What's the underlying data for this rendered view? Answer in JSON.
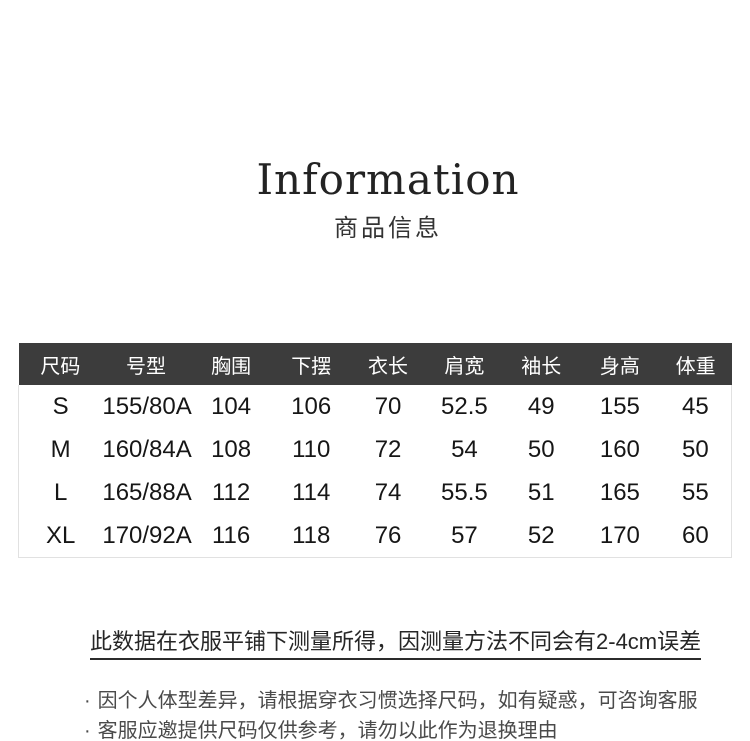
{
  "header": {
    "title": "Information",
    "subtitle": "商品信息"
  },
  "size_table": {
    "columns": [
      "尺码",
      "号型",
      "胸围",
      "下摆",
      "衣长",
      "肩宽",
      "袖长",
      "身高",
      "体重"
    ],
    "rows": [
      [
        "S",
        "155/80A",
        "104",
        "106",
        "70",
        "52.5",
        "49",
        "155",
        "45"
      ],
      [
        "M",
        "160/84A",
        "108",
        "110",
        "72",
        "54",
        "50",
        "160",
        "50"
      ],
      [
        "L",
        "165/88A",
        "112",
        "114",
        "74",
        "55.5",
        "51",
        "165",
        "55"
      ],
      [
        "XL",
        "170/92A",
        "116",
        "118",
        "76",
        "57",
        "52",
        "170",
        "60"
      ]
    ]
  },
  "notes": {
    "measurement_note": "此数据在衣服平铺下测量所得，因测量方法不同会有2-4cm误差",
    "bullet_char": "·",
    "bullets": [
      "因个人体型差异，请根据穿衣习惯选择尺码，如有疑惑，可咨询客服",
      "客服应邀提供尺码仅供参考，请勿以此作为退换理由"
    ]
  },
  "colors": {
    "title_text": "#232323",
    "table_header_bg": "#3c3c3c",
    "table_header_text": "#ffffff",
    "table_body_text": "#161616",
    "table_border": "#e1e1e1",
    "note_text": "#262626",
    "bullet_text": "#4a4a4a"
  }
}
